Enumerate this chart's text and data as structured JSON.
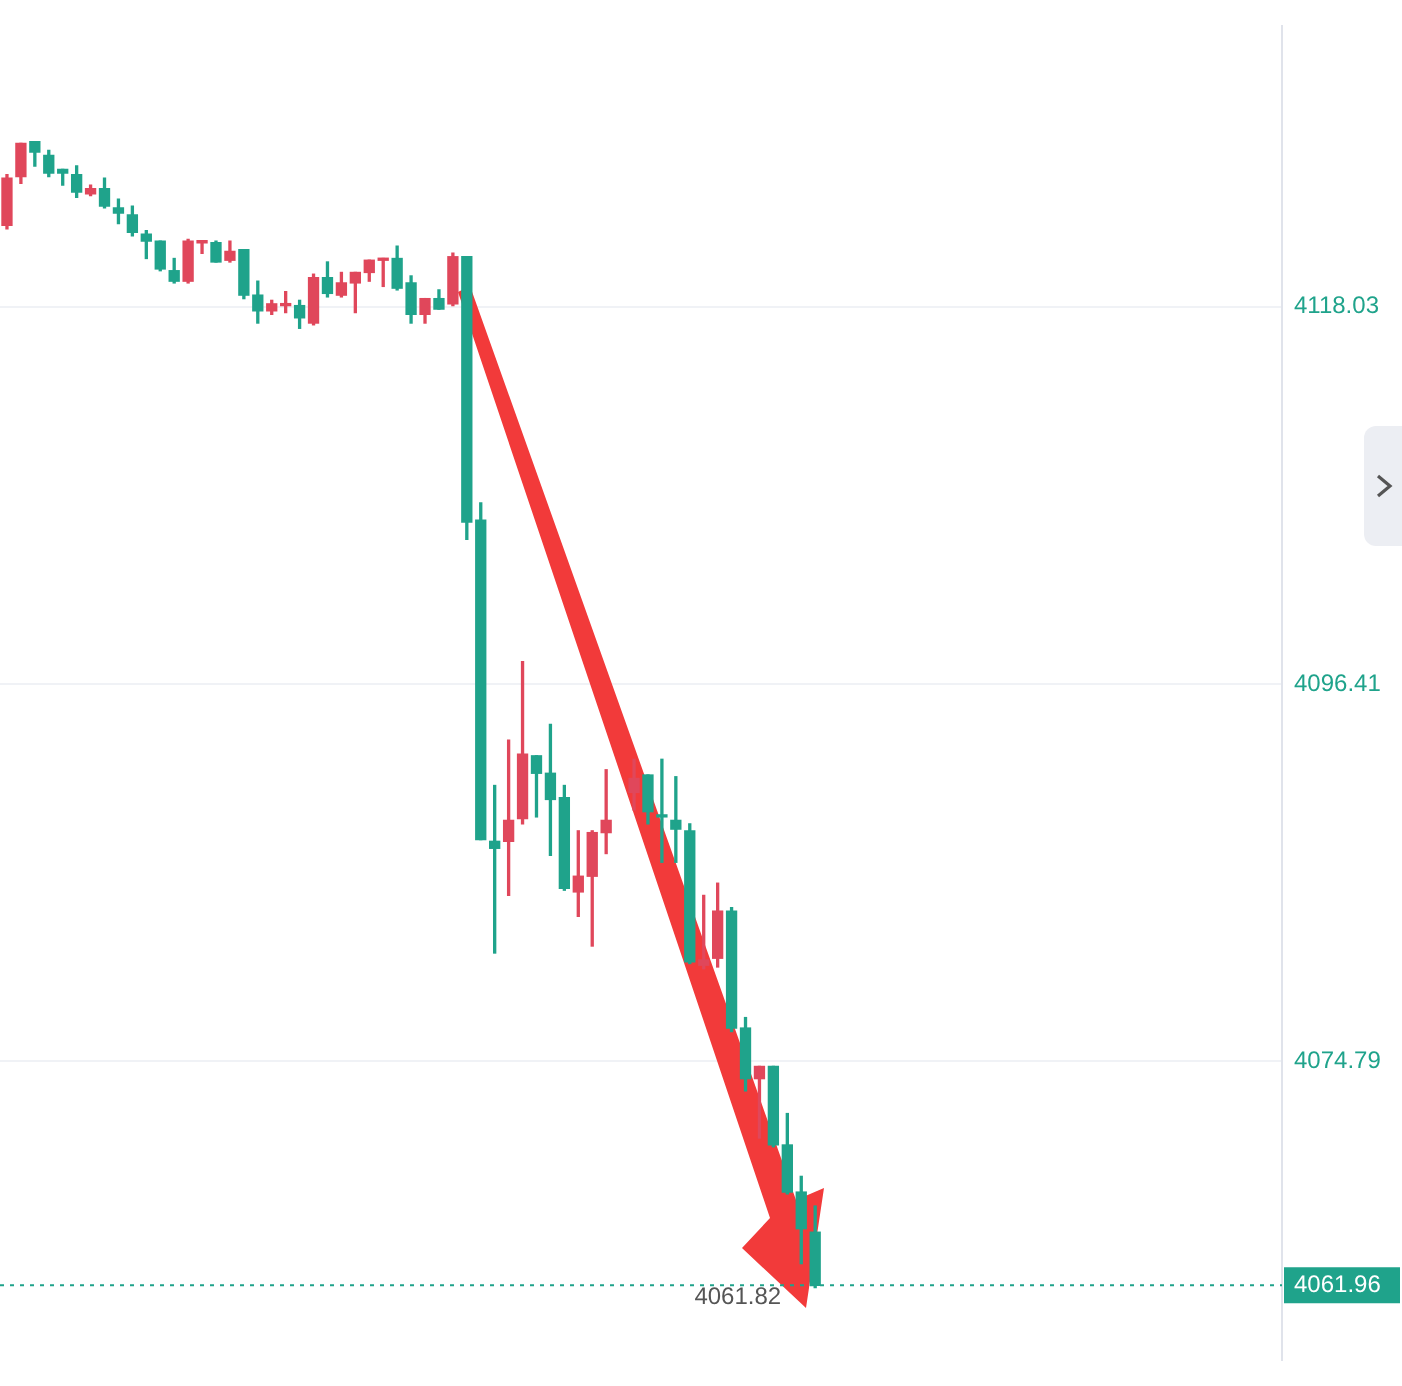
{
  "chart_data": {
    "type": "candlestick",
    "categories": [
      null,
      null,
      null,
      null,
      null,
      null,
      null,
      null,
      null,
      null,
      null,
      null,
      null,
      null,
      null,
      null,
      null,
      null,
      null,
      null,
      null,
      null,
      null,
      null,
      null,
      null,
      null,
      null,
      null,
      null,
      null,
      null,
      null,
      null,
      null,
      null,
      null,
      null,
      null,
      null,
      null,
      null,
      null,
      null,
      null,
      null,
      null,
      null,
      null,
      null,
      null,
      null,
      null,
      null,
      null,
      null,
      null,
      null,
      null,
      null,
      null,
      null,
      null,
      null,
      null,
      null,
      null,
      null,
      null,
      null,
      null,
      null,
      null,
      null,
      null,
      null,
      null,
      null,
      null,
      null,
      null,
      null,
      null,
      null,
      null,
      null,
      null,
      null,
      null,
      null,
      null,
      null
    ],
    "ohlc": [
      [
        4122.7,
        4125.6,
        4122.5,
        4125.4
      ],
      [
        4125.5,
        4127.4,
        4125.1,
        4127.4
      ],
      [
        4127.5,
        4127.5,
        4126.1,
        4126.9
      ],
      [
        4126.7,
        4127.0,
        4125.5,
        4125.7
      ],
      [
        4125.9,
        4125.9,
        4125.0,
        4125.7
      ],
      [
        4125.6,
        4126.1,
        4124.3,
        4124.6
      ],
      [
        4124.5,
        4125.0,
        4124.4,
        4124.8
      ],
      [
        4124.8,
        4125.4,
        4123.7,
        4123.8
      ],
      [
        4123.7,
        4124.2,
        4122.8,
        4123.4
      ],
      [
        4123.3,
        4123.8,
        4122.1,
        4122.3
      ],
      [
        4122.2,
        4122.4,
        4120.8,
        4121.8
      ],
      [
        4121.8,
        4121.8,
        4120.1,
        4120.2
      ],
      [
        4120.1,
        4120.8,
        4119.4,
        4119.5
      ],
      [
        4119.5,
        4121.9,
        4119.4,
        4121.8
      ],
      [
        4121.7,
        4121.8,
        4121.1,
        4121.8
      ],
      [
        4121.7,
        4121.8,
        4120.6,
        4120.6
      ],
      [
        4120.7,
        4121.8,
        4120.6,
        4121.2
      ],
      [
        4121.3,
        4121.3,
        4118.5,
        4118.7
      ],
      [
        4118.7,
        4119.5,
        4117.1,
        4117.8
      ],
      [
        4117.8,
        4118.4,
        4117.6,
        4118.2
      ],
      [
        4118.1,
        4118.9,
        4117.7,
        4118.2
      ],
      [
        4118.1,
        4118.4,
        4116.8,
        4117.4
      ],
      [
        4117.1,
        4119.9,
        4117.0,
        4119.7
      ],
      [
        4119.7,
        4120.6,
        4118.6,
        4118.8
      ],
      [
        4118.7,
        4120.0,
        4118.6,
        4119.4
      ],
      [
        4119.4,
        4120.0,
        4117.7,
        4120.0
      ],
      [
        4120.0,
        4120.7,
        4119.5,
        4120.7
      ],
      [
        4120.7,
        4120.8,
        4119.2,
        4120.8
      ],
      [
        4120.8,
        4121.5,
        4119.0,
        4119.1
      ],
      [
        4119.4,
        4119.8,
        4117.1,
        4117.6
      ],
      [
        4117.6,
        4118.5,
        4117.1,
        4118.5
      ],
      [
        4118.5,
        4119.0,
        4117.9,
        4117.9
      ],
      [
        4118.2,
        4121.1,
        4118.1,
        4120.9
      ],
      [
        4120.9,
        4120.9,
        4104.7,
        4105.7
      ],
      [
        4105.8,
        4106.8,
        4087.5,
        4087.5
      ],
      [
        4087.4,
        4090.6,
        4081.0,
        4087.0
      ],
      [
        4087.4,
        4093.2,
        4084.3,
        4088.6
      ],
      [
        4088.7,
        4097.7,
        4088.4,
        4092.4
      ],
      [
        4092.3,
        4092.3,
        4088.8,
        4091.3
      ],
      [
        4091.3,
        4094.1,
        4086.6,
        4089.8
      ],
      [
        4089.9,
        4090.6,
        4084.6,
        4084.7
      ],
      [
        4084.5,
        4088.0,
        4083.1,
        4085.4
      ],
      [
        4085.4,
        4088.0,
        4081.4,
        4087.9
      ],
      [
        4087.9,
        4091.5,
        4086.7,
        4088.6
      ],
      null,
      [
        4090.2,
        4092.1,
        4089.2,
        4091.0
      ],
      [
        4091.2,
        4091.2,
        4088.4,
        4089.1
      ],
      [
        4088.9,
        4092.1,
        4086.2,
        4088.8
      ],
      [
        4088.6,
        4091.1,
        4086.2,
        4088.1
      ],
      [
        4088.0,
        4088.4,
        4080.4,
        4080.5
      ],
      [
        4080.3,
        4084.3,
        4080.1,
        4080.6
      ],
      [
        4080.7,
        4085.0,
        4080.2,
        4083.4
      ],
      [
        4083.4,
        4083.6,
        4076.5,
        4076.7
      ],
      [
        4076.7,
        4077.3,
        4073.1,
        4073.8
      ],
      [
        4073.8,
        4074.5,
        4070.4,
        4074.5
      ],
      [
        4074.5,
        4074.5,
        4069.9,
        4070.0
      ],
      [
        4070.0,
        4071.8,
        4067.2,
        4067.3
      ],
      [
        4067.3,
        4068.2,
        4063.2,
        4065.2
      ],
      [
        4065.0,
        4066.5,
        4061.82,
        4061.96
      ],
      null,
      null,
      null,
      null,
      null,
      null,
      null,
      null,
      null,
      null,
      null,
      null,
      null,
      null,
      null,
      null,
      null,
      null,
      null,
      null,
      null,
      null,
      null,
      null,
      null,
      null,
      null,
      null,
      null,
      null,
      null,
      null,
      null
    ],
    "colors": [
      "#e0475b",
      "#e0475b",
      "#1fa38b",
      "#1fa38b",
      "#1fa38b",
      "#1fa38b",
      "#e0475b",
      "#1fa38b",
      "#1fa38b",
      "#1fa38b",
      "#1fa38b",
      "#1fa38b",
      "#1fa38b",
      "#e0475b",
      "#e0475b",
      "#1fa38b",
      "#e0475b",
      "#1fa38b",
      "#1fa38b",
      "#e0475b",
      "#e0475b",
      "#1fa38b",
      "#e0475b",
      "#1fa38b",
      "#e0475b",
      "#e0475b",
      "#e0475b",
      "#e0475b",
      "#1fa38b",
      "#1fa38b",
      "#e0475b",
      "#1fa38b",
      "#e0475b",
      "#1fa38b",
      "#1fa38b",
      "#1fa38b",
      "#e0475b",
      "#e0475b",
      "#1fa38b",
      "#1fa38b",
      "#1fa38b",
      "#e0475b",
      "#e0475b",
      "#e0475b",
      "#e0475b",
      "#e0475b",
      "#1fa38b",
      "#1fa38b",
      "#1fa38b",
      "#1fa38b",
      "#e0475b",
      "#e0475b",
      "#1fa38b",
      "#1fa38b",
      "#e0475b",
      "#1fa38b",
      "#1fa38b",
      "#1fa38b",
      "#1fa38b",
      null,
      null,
      null,
      null,
      null,
      null,
      null,
      null,
      null,
      null,
      null,
      null,
      null,
      null,
      null,
      null,
      null,
      null,
      null,
      null,
      null,
      null,
      null,
      null,
      null,
      null,
      null,
      null,
      null,
      null,
      null,
      null,
      null
    ],
    "ylim": [
      4057.7,
      4134.1
    ],
    "yticks": [
      4118.03,
      4096.41,
      4074.79
    ],
    "grid": "y",
    "ref_lines": [
      {
        "axis": "y",
        "value": 4061.96,
        "label": "4061.96",
        "color": "#1fa38b",
        "line_style": "dotted"
      }
    ],
    "annotations": [
      {
        "text": "4061.82",
        "y": 4061.82
      }
    ]
  }
}
